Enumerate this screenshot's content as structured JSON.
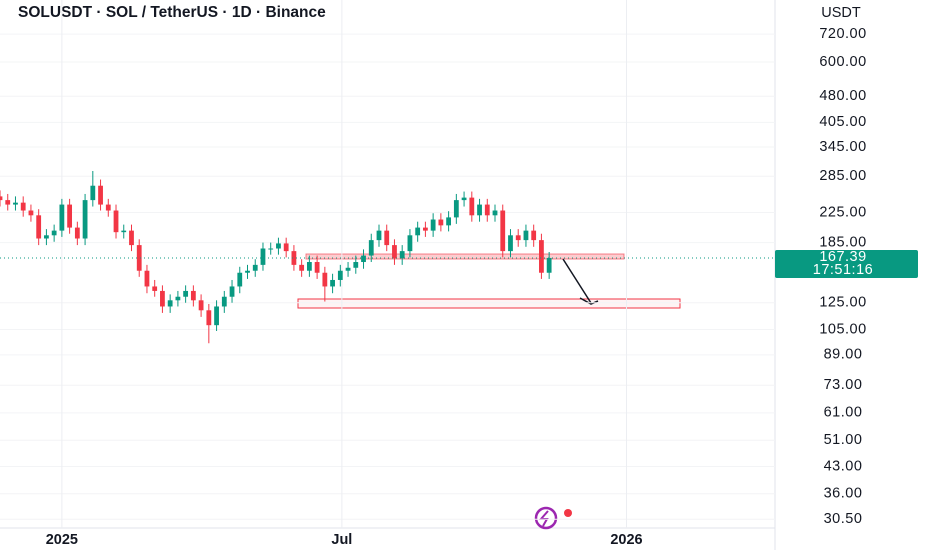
{
  "chart_data": {
    "type": "candlestick",
    "title": "SOLUSDT · SOL / TetherUS · 1D · Binance",
    "y_axis_label": "USDT",
    "log_scale": true,
    "grid": true,
    "up_color": "#089981",
    "down_color": "#f23645",
    "last_price": 167.39,
    "last_price_label": "167.39",
    "countdown": "17:51:16",
    "xlim": [
      -40,
      461
    ],
    "xticks": [
      {
        "value": 0,
        "label": "2025"
      },
      {
        "value": 181,
        "label": "Jul"
      },
      {
        "value": 365,
        "label": "2026"
      }
    ],
    "ylim": [
      28.8,
      899
    ],
    "yticks": [
      {
        "value": 720,
        "label": "720.00"
      },
      {
        "value": 600,
        "label": "600.00"
      },
      {
        "value": 480,
        "label": "480.00"
      },
      {
        "value": 405,
        "label": "405.00"
      },
      {
        "value": 345,
        "label": "345.00"
      },
      {
        "value": 285,
        "label": "285.00"
      },
      {
        "value": 225,
        "label": "225.00"
      },
      {
        "value": 185,
        "label": "185.00"
      },
      {
        "value": 125,
        "label": "125.00"
      },
      {
        "value": 105,
        "label": "105.00"
      },
      {
        "value": 89,
        "label": "89.00"
      },
      {
        "value": 73,
        "label": "73.00"
      },
      {
        "value": 61,
        "label": "61.00"
      },
      {
        "value": 51,
        "label": "51.00"
      },
      {
        "value": 43,
        "label": "43.00"
      },
      {
        "value": 36,
        "label": "36.00"
      },
      {
        "value": 30.5,
        "label": "30.50"
      }
    ],
    "x": [
      -40,
      -35,
      -30,
      -25,
      -20,
      -15,
      -10,
      -5,
      0,
      5,
      10,
      15,
      20,
      25,
      30,
      35,
      40,
      45,
      50,
      55,
      60,
      65,
      70,
      75,
      80,
      85,
      90,
      95,
      100,
      105,
      110,
      115,
      120,
      125,
      130,
      135,
      140,
      145,
      150,
      155,
      160,
      165,
      170,
      175,
      180,
      185,
      190,
      195,
      200,
      205,
      210,
      215,
      220,
      225,
      230,
      235,
      240,
      245,
      250,
      255,
      260,
      265,
      270,
      275,
      280,
      285,
      290,
      295,
      300,
      305,
      310,
      315
    ],
    "open": [
      250,
      244,
      237,
      240,
      228,
      221,
      190,
      194,
      200,
      237,
      204,
      190,
      244,
      268,
      237,
      228,
      198,
      200,
      182,
      154,
      139,
      135,
      122,
      127,
      130,
      135,
      127,
      119,
      108,
      122,
      130,
      139,
      152,
      154,
      160,
      178,
      178,
      184,
      175,
      160,
      154,
      163,
      152,
      139,
      145,
      154,
      157,
      163,
      170,
      188,
      200,
      182,
      167,
      175,
      194,
      204,
      200,
      215,
      207,
      218,
      244,
      248,
      221,
      237,
      221,
      228,
      175,
      194,
      188,
      200,
      188,
      152
    ],
    "high": [
      260,
      254,
      250,
      250,
      237,
      230,
      202,
      208,
      246,
      246,
      212,
      254,
      295,
      279,
      246,
      237,
      208,
      208,
      189,
      160,
      145,
      140,
      132,
      135,
      140,
      140,
      132,
      124,
      127,
      135,
      145,
      158,
      160,
      166,
      185,
      185,
      191,
      191,
      182,
      166,
      170,
      170,
      158,
      151,
      160,
      163,
      170,
      177,
      196,
      208,
      208,
      189,
      182,
      202,
      212,
      212,
      224,
      224,
      227,
      254,
      258,
      258,
      246,
      246,
      237,
      237,
      202,
      202,
      208,
      208,
      196,
      174
    ],
    "low": [
      234,
      228,
      228,
      219,
      212,
      182,
      182,
      186,
      192,
      196,
      182,
      182,
      234,
      228,
      219,
      190,
      190,
      175,
      148,
      133,
      130,
      117,
      117,
      122,
      125,
      122,
      114,
      96,
      104,
      117,
      125,
      133,
      146,
      148,
      154,
      171,
      171,
      168,
      154,
      148,
      148,
      146,
      126,
      133,
      139,
      148,
      151,
      156,
      163,
      180,
      175,
      160,
      160,
      168,
      186,
      192,
      192,
      199,
      199,
      209,
      234,
      212,
      212,
      212,
      212,
      168,
      168,
      180,
      180,
      180,
      146,
      146
    ],
    "close": [
      244,
      237,
      240,
      228,
      221,
      190,
      194,
      200,
      237,
      204,
      190,
      244,
      268,
      237,
      228,
      198,
      200,
      182,
      154,
      139,
      135,
      122,
      127,
      130,
      135,
      127,
      119,
      108,
      122,
      130,
      139,
      152,
      154,
      160,
      178,
      178,
      184,
      175,
      160,
      154,
      163,
      152,
      139,
      145,
      154,
      157,
      163,
      170,
      188,
      200,
      182,
      167,
      175,
      194,
      204,
      200,
      215,
      207,
      218,
      244,
      248,
      221,
      237,
      221,
      228,
      175,
      194,
      188,
      200,
      188,
      152,
      167.39
    ]
  }
}
